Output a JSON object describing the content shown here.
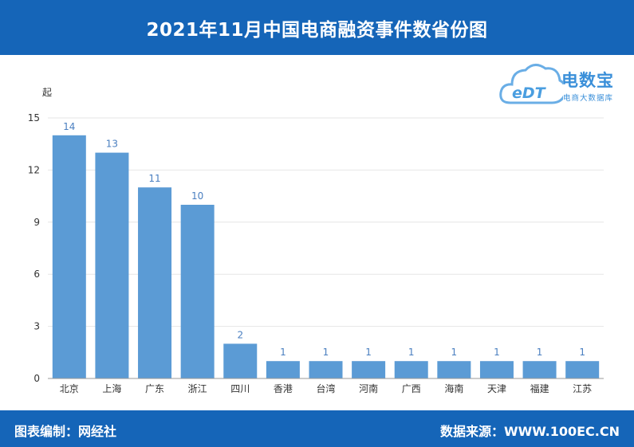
{
  "header": {
    "title": "2021年11月中国电商融资事件数省份图"
  },
  "footer": {
    "left": "图表编制：网经社",
    "right": "数据来源：WWW.100EC.CN"
  },
  "logo": {
    "mark": "eDT",
    "brand": "电数宝",
    "sub": "电商大数据库"
  },
  "colors": {
    "header_bg": "#1565b8",
    "bar": "#5b9bd5",
    "label": "#4a7fc0"
  },
  "chart_data": {
    "type": "bar",
    "ylabel": "起",
    "ylim": [
      0,
      15
    ],
    "yticks": [
      0,
      3,
      6,
      9,
      12,
      15
    ],
    "grid": true,
    "categories": [
      "北京",
      "上海",
      "广东",
      "浙江",
      "四川",
      "香港",
      "台湾",
      "河南",
      "广西",
      "海南",
      "天津",
      "福建",
      "江苏"
    ],
    "values": [
      14,
      13,
      11,
      10,
      2,
      1,
      1,
      1,
      1,
      1,
      1,
      1,
      1
    ]
  }
}
